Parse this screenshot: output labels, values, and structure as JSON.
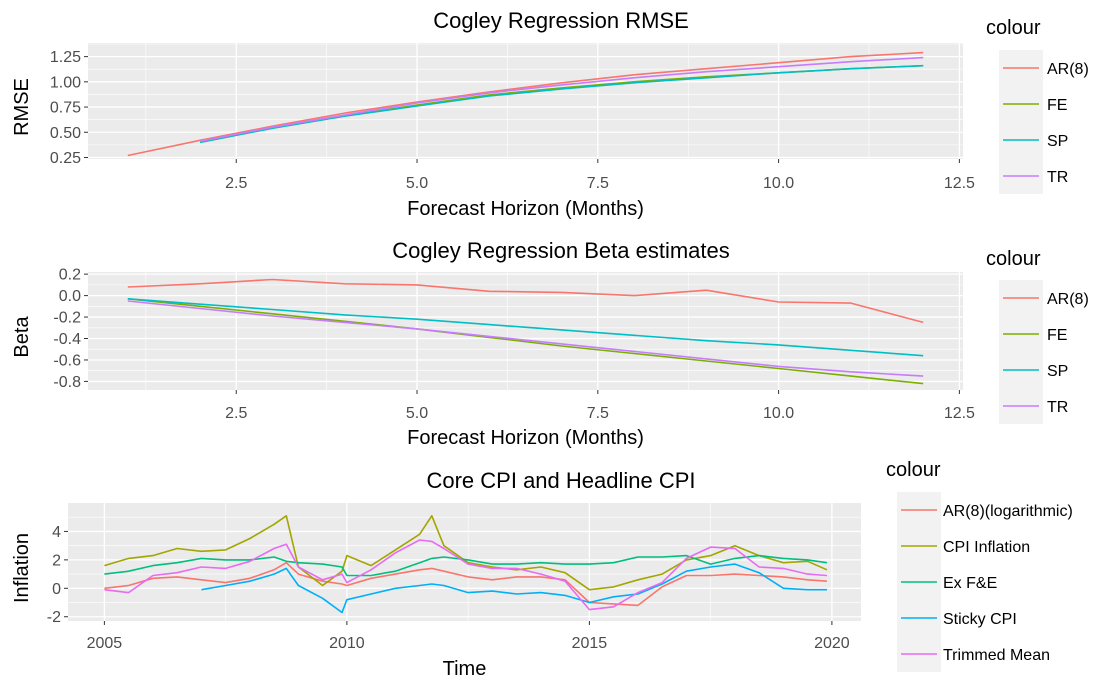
{
  "chart_data": [
    {
      "type": "line",
      "title": "Cogley Regression RMSE",
      "xlabel": "Forecast Horizon (Months)",
      "ylabel": "RMSE",
      "xlim": [
        0.45,
        12.55
      ],
      "ylim": [
        0.235,
        1.385
      ],
      "x_ticks": [
        2.5,
        5.0,
        7.5,
        10.0,
        12.5
      ],
      "x_tick_labels": [
        "2.5",
        "5.0",
        "7.5",
        "10.0",
        "12.5"
      ],
      "y_ticks": [
        0.25,
        0.5,
        0.75,
        1.0,
        1.25
      ],
      "y_tick_labels": [
        "0.25",
        "0.50",
        "0.75",
        "1.00",
        "1.25"
      ],
      "grid": true,
      "legend_title": "colour",
      "legend_position": "right",
      "x": [
        1,
        2,
        3,
        4,
        5,
        6,
        7,
        8,
        9,
        10,
        11,
        12
      ],
      "series": [
        {
          "name": "AR(8)",
          "color": "#F8766D",
          "values": [
            0.27,
            0.42,
            0.56,
            0.69,
            0.8,
            0.9,
            0.99,
            1.07,
            1.13,
            1.19,
            1.25,
            1.29
          ]
        },
        {
          "name": "FE",
          "color": "#7CAE00",
          "values": [
            null,
            0.4,
            0.54,
            0.66,
            0.77,
            0.87,
            0.94,
            1.0,
            1.05,
            1.09,
            1.13,
            1.16
          ]
        },
        {
          "name": "SP",
          "color": "#00BFC4",
          "values": [
            null,
            0.4,
            0.54,
            0.66,
            0.76,
            0.86,
            0.93,
            0.99,
            1.04,
            1.09,
            1.13,
            1.16
          ]
        },
        {
          "name": "TR",
          "color": "#C77CFF",
          "values": [
            null,
            0.41,
            0.55,
            0.67,
            0.79,
            0.89,
            0.97,
            1.04,
            1.1,
            1.15,
            1.2,
            1.24
          ]
        }
      ]
    },
    {
      "type": "line",
      "title": "Cogley Regression Beta estimates",
      "xlabel": "Forecast Horizon (Months)",
      "ylabel": "Beta",
      "xlim": [
        0.45,
        12.55
      ],
      "ylim": [
        -0.88,
        0.22
      ],
      "x_ticks": [
        2.5,
        5.0,
        7.5,
        10.0,
        12.5
      ],
      "x_tick_labels": [
        "2.5",
        "5.0",
        "7.5",
        "10.0",
        "12.5"
      ],
      "y_ticks": [
        0.2,
        0.0,
        -0.2,
        -0.4,
        -0.6,
        -0.8
      ],
      "y_tick_labels": [
        "0.2",
        "0.0",
        "-0.2",
        "-0.4",
        "-0.6",
        "-0.8"
      ],
      "grid": true,
      "legend_title": "colour",
      "legend_position": "right",
      "x": [
        1,
        2,
        3,
        4,
        5,
        6,
        7,
        8,
        9,
        10,
        11,
        12
      ],
      "series": [
        {
          "name": "AR(8)",
          "color": "#F8766D",
          "values": [
            0.08,
            0.11,
            0.15,
            0.11,
            0.1,
            0.04,
            0.03,
            0.0,
            0.05,
            -0.06,
            -0.07,
            -0.25
          ]
        },
        {
          "name": "FE",
          "color": "#7CAE00",
          "values": [
            -0.03,
            -0.1,
            -0.17,
            -0.24,
            -0.31,
            -0.39,
            -0.47,
            -0.54,
            -0.61,
            -0.68,
            -0.75,
            -0.82
          ]
        },
        {
          "name": "SP",
          "color": "#00BFC4",
          "values": [
            -0.03,
            -0.08,
            -0.13,
            -0.18,
            -0.22,
            -0.27,
            -0.32,
            -0.37,
            -0.42,
            -0.46,
            -0.51,
            -0.56
          ]
        },
        {
          "name": "TR",
          "color": "#C77CFF",
          "values": [
            -0.05,
            -0.12,
            -0.19,
            -0.25,
            -0.31,
            -0.38,
            -0.45,
            -0.52,
            -0.59,
            -0.66,
            -0.71,
            -0.75
          ]
        }
      ]
    },
    {
      "type": "line",
      "title": "Core CPI and Headline CPI",
      "xlabel": "Time",
      "ylabel": "Inflation",
      "xlim": [
        2004.25,
        2020.6
      ],
      "ylim": [
        -2.3,
        6.0
      ],
      "x_ticks": [
        2005,
        2010,
        2015,
        2020
      ],
      "x_tick_labels": [
        "2005",
        "2010",
        "2015",
        "2020"
      ],
      "y_ticks": [
        -2,
        0,
        2,
        4
      ],
      "y_tick_labels": [
        "-2",
        "0",
        "2",
        "4"
      ],
      "grid": true,
      "legend_title": "colour",
      "legend_position": "right",
      "x": [
        2005.0,
        2005.5,
        2006.0,
        2006.5,
        2007.0,
        2007.5,
        2008.0,
        2008.5,
        2008.75,
        2009.0,
        2009.5,
        2009.9,
        2010.0,
        2010.5,
        2011.0,
        2011.5,
        2011.75,
        2012.0,
        2012.5,
        2013.0,
        2013.5,
        2014.0,
        2014.5,
        2015.0,
        2015.5,
        2016.0,
        2016.5,
        2017.0,
        2017.5,
        2018.0,
        2018.5,
        2019.0,
        2019.5,
        2019.9
      ],
      "series": [
        {
          "name": "AR(8)(logarithmic)",
          "color": "#F8766D",
          "values": [
            0.0,
            0.2,
            0.7,
            0.8,
            0.6,
            0.4,
            0.7,
            1.3,
            1.8,
            1.0,
            0.5,
            0.3,
            0.2,
            0.7,
            1.0,
            1.3,
            1.4,
            1.2,
            0.8,
            0.6,
            0.8,
            0.8,
            0.6,
            -1.0,
            -1.1,
            -1.2,
            0.1,
            0.9,
            0.9,
            1.0,
            0.9,
            0.8,
            0.6,
            0.5
          ]
        },
        {
          "name": "CPI Inflation",
          "color": "#A3A500",
          "values": [
            1.6,
            2.1,
            2.3,
            2.8,
            2.6,
            2.7,
            3.5,
            4.5,
            5.1,
            1.5,
            0.2,
            1.2,
            2.3,
            1.6,
            2.7,
            3.8,
            5.1,
            3.0,
            1.8,
            1.5,
            1.3,
            1.5,
            1.1,
            -0.1,
            0.1,
            0.6,
            1.0,
            2.0,
            2.3,
            3.0,
            2.3,
            1.8,
            1.9,
            1.3
          ]
        },
        {
          "name": "Ex F&E",
          "color": "#00BF7D",
          "values": [
            1.0,
            1.2,
            1.6,
            1.8,
            2.1,
            2.0,
            2.0,
            2.2,
            1.9,
            1.8,
            1.7,
            1.5,
            0.9,
            0.9,
            1.2,
            1.8,
            2.1,
            2.2,
            2.0,
            1.7,
            1.7,
            1.8,
            1.7,
            1.7,
            1.8,
            2.2,
            2.2,
            2.3,
            1.7,
            2.1,
            2.3,
            2.1,
            2.0,
            1.8
          ]
        },
        {
          "name": "Sticky CPI",
          "color": "#00B0F6",
          "values": [
            null,
            null,
            null,
            null,
            -0.1,
            0.2,
            0.5,
            1.0,
            1.4,
            0.2,
            -0.7,
            -1.7,
            -0.8,
            -0.4,
            0.0,
            0.2,
            0.3,
            0.2,
            -0.3,
            -0.2,
            -0.4,
            -0.3,
            -0.5,
            -1.0,
            -0.6,
            -0.4,
            0.3,
            1.2,
            1.5,
            1.7,
            1.1,
            0.0,
            -0.1,
            -0.1
          ]
        },
        {
          "name": "Trimmed Mean",
          "color": "#E76BF3",
          "values": [
            -0.1,
            -0.3,
            0.9,
            1.1,
            1.5,
            1.4,
            1.9,
            2.8,
            3.1,
            1.5,
            0.6,
            1.0,
            0.4,
            1.3,
            2.5,
            3.4,
            3.3,
            2.8,
            1.7,
            1.4,
            1.4,
            1.0,
            0.5,
            -1.5,
            -1.3,
            -0.3,
            0.4,
            2.1,
            2.9,
            2.8,
            1.5,
            1.4,
            1.0,
            0.9
          ]
        }
      ]
    }
  ]
}
